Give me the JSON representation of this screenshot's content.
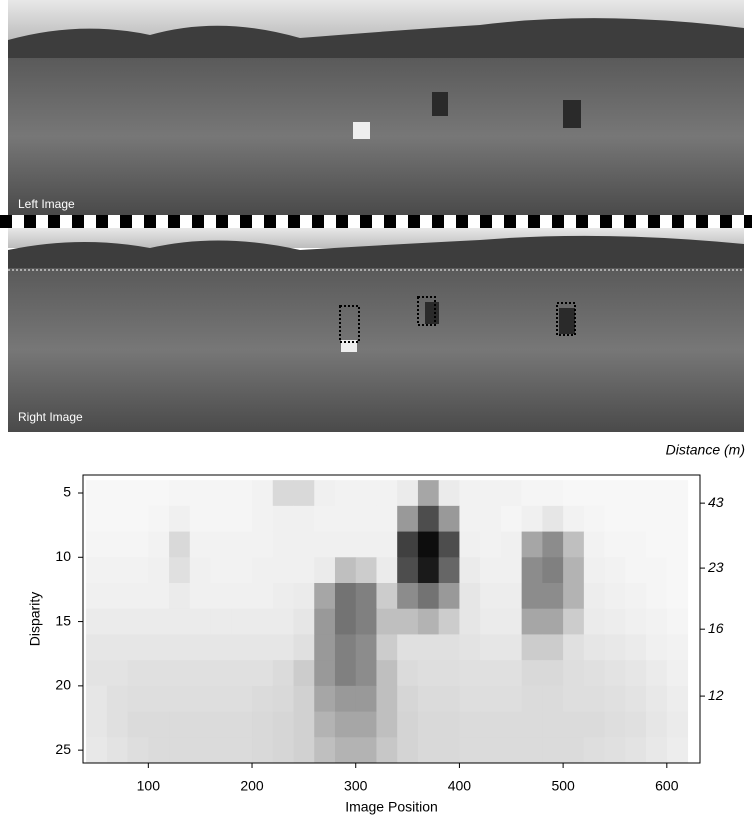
{
  "images": {
    "left_label": "Left Image",
    "right_label": "Right Image"
  },
  "chart_data": {
    "type": "heatmap",
    "x_label": "Image Position",
    "y_label": "Disparity",
    "y2_label": "Distance (m)",
    "x_edges": [
      40,
      60,
      80,
      100,
      120,
      140,
      160,
      180,
      200,
      220,
      240,
      260,
      280,
      300,
      320,
      340,
      360,
      380,
      400,
      420,
      440,
      460,
      480,
      500,
      520,
      540,
      560,
      580,
      600,
      620
    ],
    "y_edges": [
      4,
      6,
      8,
      10,
      12,
      14,
      16,
      18,
      20,
      22,
      24,
      26
    ],
    "z": [
      [
        3,
        3,
        3,
        3,
        4,
        4,
        4,
        4,
        5,
        15,
        15,
        6,
        5,
        5,
        5,
        8,
        35,
        8,
        5,
        5,
        5,
        4,
        4,
        3,
        3,
        3,
        3,
        3,
        3
      ],
      [
        3,
        3,
        3,
        4,
        6,
        4,
        4,
        4,
        5,
        6,
        6,
        5,
        5,
        5,
        5,
        40,
        70,
        40,
        5,
        5,
        4,
        6,
        10,
        5,
        4,
        3,
        3,
        3,
        3
      ],
      [
        4,
        4,
        4,
        5,
        15,
        5,
        5,
        5,
        5,
        6,
        6,
        6,
        6,
        6,
        6,
        75,
        95,
        70,
        6,
        5,
        6,
        35,
        45,
        25,
        5,
        4,
        4,
        3,
        3
      ],
      [
        5,
        5,
        5,
        6,
        12,
        6,
        5,
        5,
        6,
        6,
        6,
        8,
        25,
        20,
        8,
        70,
        90,
        60,
        8,
        6,
        6,
        45,
        50,
        30,
        6,
        5,
        4,
        4,
        3
      ],
      [
        6,
        6,
        6,
        6,
        8,
        6,
        6,
        6,
        6,
        7,
        8,
        35,
        55,
        50,
        20,
        45,
        55,
        40,
        10,
        7,
        7,
        45,
        45,
        30,
        7,
        6,
        5,
        4,
        3
      ],
      [
        8,
        8,
        8,
        8,
        8,
        8,
        8,
        8,
        8,
        8,
        10,
        40,
        55,
        50,
        25,
        25,
        30,
        20,
        10,
        8,
        8,
        35,
        35,
        20,
        8,
        7,
        6,
        5,
        4
      ],
      [
        10,
        10,
        10,
        10,
        10,
        10,
        10,
        10,
        10,
        10,
        12,
        40,
        50,
        45,
        20,
        12,
        12,
        12,
        11,
        10,
        10,
        20,
        20,
        12,
        10,
        9,
        8,
        6,
        5
      ],
      [
        11,
        11,
        12,
        12,
        12,
        12,
        12,
        12,
        12,
        14,
        20,
        40,
        50,
        45,
        25,
        14,
        13,
        13,
        12,
        12,
        12,
        15,
        15,
        13,
        12,
        11,
        10,
        8,
        6
      ],
      [
        10,
        12,
        13,
        13,
        13,
        13,
        13,
        13,
        14,
        15,
        18,
        35,
        40,
        40,
        25,
        16,
        14,
        14,
        13,
        13,
        13,
        14,
        14,
        13,
        13,
        12,
        11,
        9,
        7
      ],
      [
        10,
        12,
        14,
        14,
        14,
        14,
        14,
        14,
        15,
        16,
        18,
        30,
        35,
        35,
        25,
        17,
        15,
        15,
        14,
        14,
        14,
        14,
        14,
        14,
        14,
        13,
        12,
        10,
        8
      ],
      [
        9,
        11,
        13,
        14,
        14,
        14,
        14,
        14,
        15,
        16,
        18,
        25,
        30,
        30,
        22,
        17,
        15,
        15,
        14,
        14,
        14,
        14,
        14,
        14,
        13,
        12,
        11,
        9,
        7
      ]
    ],
    "clim": [
      0,
      100
    ],
    "colors": [
      "#ffffff",
      "#000000"
    ],
    "xlim": [
      37,
      632
    ],
    "xticks": [
      100,
      200,
      300,
      400,
      500,
      600
    ],
    "ylim": [
      3.6,
      26
    ],
    "y_inverted": true,
    "yticks": [
      5,
      10,
      15,
      20,
      25
    ],
    "y2lim": [
      69,
      9.6
    ],
    "y2_scale": "reciprocal",
    "y2ticks": [
      43,
      23,
      16,
      12
    ]
  }
}
